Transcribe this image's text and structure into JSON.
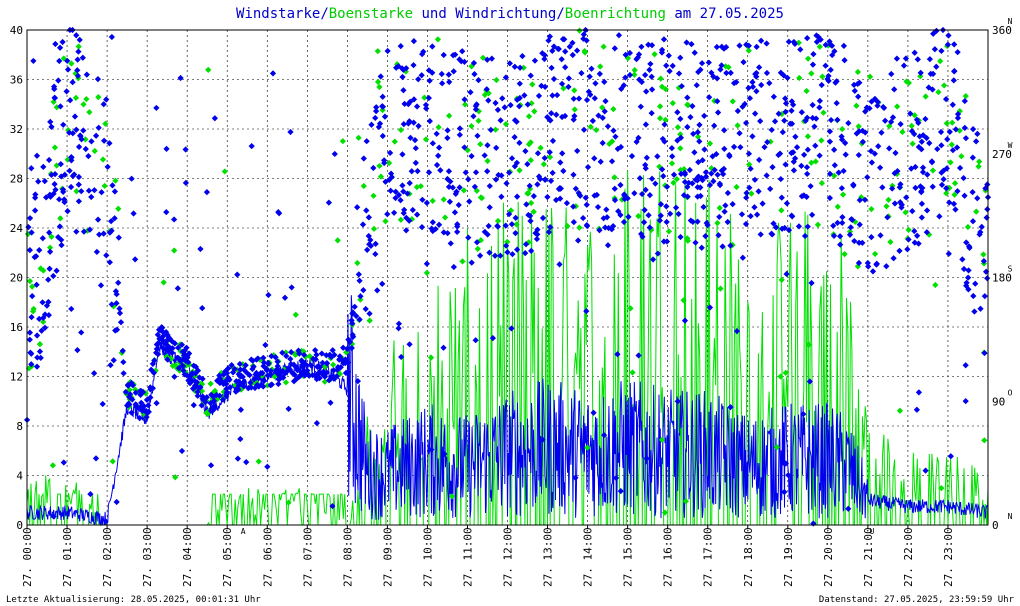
{
  "title": {
    "part1": "Windstarke",
    "sep1": "/",
    "part2": "Boenstarke",
    "mid": " und ",
    "part3": "Windrichtung",
    "sep2": "/",
    "part4": "Boenrichtung",
    "tail": " am 27.05.2025"
  },
  "colors": {
    "blue": "#0000ee",
    "green": "#00e000",
    "title_blue": "#0000cc",
    "title_green": "#00cc00",
    "marker_red": "#cc0000",
    "grid": "#000000"
  },
  "chart_data": {
    "type": "line",
    "left_axis": {
      "ylim": [
        0,
        40
      ],
      "ticks": [
        "0",
        "4",
        "8",
        "12",
        "16",
        "20",
        "24",
        "28",
        "32",
        "36",
        "40"
      ]
    },
    "right_axis": {
      "ylim": [
        0,
        360
      ],
      "ticks": [
        {
          "value": 0,
          "label": "0",
          "dir": "N"
        },
        {
          "value": 90,
          "label": "90",
          "dir": "O"
        },
        {
          "value": 180,
          "label": "180",
          "dir": "S"
        },
        {
          "value": 270,
          "label": "270",
          "dir": "W"
        },
        {
          "value": 360,
          "label": "360",
          "dir": "N"
        }
      ]
    },
    "x_ticks": [
      "27. 00:00",
      "27. 01:00",
      "27. 02:00",
      "27. 03:00",
      "27. 04:00",
      "27. 05:00",
      "27. 06:00",
      "27. 07:00",
      "27. 08:00",
      "27. 09:00",
      "27. 10:00",
      "27. 11:00",
      "27. 12:00",
      "27. 13:00",
      "27. 14:00",
      "27. 15:00",
      "27. 16:00",
      "27. 17:00",
      "27. 18:00",
      "27. 19:00",
      "27. 20:00",
      "27. 21:00",
      "27. 22:00",
      "27. 23:00"
    ],
    "x_markers": [
      {
        "hour": 5.4,
        "label": "A"
      },
      {
        "hour": 21.1,
        "label": "U"
      }
    ],
    "series": [
      {
        "name": "Windstarke",
        "color": "#0000ee",
        "kind": "line",
        "axis": "left",
        "profile_hours": [
          0,
          1,
          2,
          2.5,
          3,
          3.3,
          3.6,
          4,
          4.5,
          5,
          5.5,
          6,
          6.5,
          7,
          7.5,
          8,
          8.5,
          9,
          10,
          11,
          12,
          13,
          14,
          15,
          16,
          17,
          18,
          19,
          20,
          20.5,
          21,
          22,
          23,
          24
        ],
        "profile_values": [
          1,
          1,
          0.5,
          9.5,
          8.5,
          14.5,
          13.5,
          13,
          9,
          10.5,
          11.5,
          12,
          12.5,
          13,
          12.5,
          11,
          4,
          4,
          5,
          4.5,
          5.5,
          6,
          5.5,
          6,
          5.5,
          5.5,
          4.5,
          5,
          5,
          4.5,
          2,
          1.5,
          1.5,
          1
        ]
      },
      {
        "name": "Boenstarke",
        "color": "#00e000",
        "kind": "line",
        "axis": "left",
        "profile_hours": [
          0,
          1,
          2,
          2.5,
          3,
          3.3,
          3.6,
          4,
          4.5,
          5,
          5.5,
          6,
          6.5,
          7,
          7.5,
          8,
          8.5,
          9,
          10,
          11,
          12,
          13,
          14,
          15,
          16,
          17,
          18,
          19,
          20,
          20.5,
          21,
          22,
          23,
          24
        ],
        "profile_values": [
          2.5,
          3,
          0,
          0,
          0,
          0,
          0,
          0,
          0,
          2,
          2,
          2,
          2,
          2,
          2,
          0,
          6,
          10,
          13,
          16,
          18,
          18,
          17,
          20,
          21,
          19,
          16,
          17,
          18,
          16,
          6,
          4,
          4,
          3
        ]
      },
      {
        "name": "Windrichtung",
        "color": "#0000ee",
        "kind": "scatter",
        "axis": "right",
        "profile_hours": [
          0,
          1,
          2,
          2.5,
          3,
          3.3,
          3.6,
          4,
          4.5,
          5,
          5.5,
          6,
          6.5,
          7,
          7.5,
          8,
          8.5,
          9,
          10,
          11,
          12,
          13,
          14,
          15,
          16,
          17,
          18,
          19,
          20,
          20.5,
          21,
          22,
          23,
          24
        ],
        "profile_values": [
          140,
          300,
          240,
          95,
          85,
          135,
          125,
          118,
          90,
          105,
          110,
          112,
          115,
          117,
          115,
          120,
          210,
          280,
          290,
          270,
          265,
          280,
          290,
          285,
          280,
          275,
          280,
          285,
          280,
          260,
          250,
          270,
          300,
          180
        ]
      },
      {
        "name": "Boenrichtung",
        "color": "#00e000",
        "kind": "scatter",
        "axis": "right",
        "profile_hours": [
          0,
          1,
          2,
          2.5,
          3,
          3.3,
          3.6,
          4,
          4.5,
          5,
          5.5,
          6,
          6.5,
          7,
          7.5,
          8,
          8.5,
          9,
          10,
          11,
          12,
          13,
          14,
          15,
          16,
          17,
          18,
          19,
          20,
          20.5,
          21,
          22,
          23,
          24
        ],
        "profile_values": [
          140,
          300,
          240,
          95,
          85,
          135,
          125,
          118,
          90,
          105,
          110,
          112,
          115,
          117,
          115,
          120,
          210,
          280,
          290,
          270,
          265,
          280,
          290,
          285,
          280,
          275,
          280,
          285,
          280,
          260,
          250,
          270,
          300,
          180
        ]
      }
    ]
  },
  "footer": {
    "left": "Letzte Aktualisierung: 28.05.2025, 00:01:31 Uhr",
    "right": "Datenstand: 27.05.2025, 23:59:59 Uhr"
  }
}
